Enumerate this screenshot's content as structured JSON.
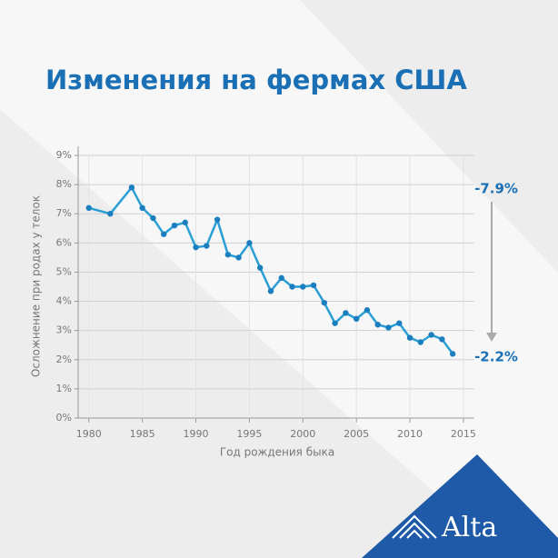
{
  "chart_data": {
    "type": "line",
    "title": "Изменения на фермах США",
    "ylabel": "Осложнение при родах у телок",
    "xlabel": "Год рождения быка",
    "x": [
      1980,
      1982,
      1984,
      1985,
      1986,
      1987,
      1988,
      1989,
      1990,
      1991,
      1992,
      1993,
      1994,
      1995,
      1996,
      1997,
      1998,
      1999,
      2000,
      2001,
      2002,
      2003,
      2004,
      2005,
      2006,
      2007,
      2008,
      2009,
      2010,
      2011,
      2012,
      2013,
      2014
    ],
    "values": [
      7.2,
      7.0,
      7.9,
      7.2,
      6.85,
      6.3,
      6.6,
      6.7,
      5.85,
      5.9,
      6.8,
      5.6,
      5.5,
      6.0,
      5.15,
      4.35,
      4.8,
      4.5,
      4.5,
      4.55,
      3.95,
      3.25,
      3.6,
      3.4,
      3.7,
      3.2,
      3.1,
      3.25,
      2.75,
      2.6,
      2.85,
      2.7,
      2.2
    ],
    "color": "#2a9fd6",
    "xlim": [
      1979,
      2016
    ],
    "xticks": [
      1980,
      1985,
      1990,
      1995,
      2000,
      2005,
      2010,
      2015
    ],
    "ylim": [
      0,
      9
    ],
    "yticks": [
      {
        "value": 0,
        "label": "0%"
      },
      {
        "value": 1,
        "label": "1%"
      },
      {
        "value": 2,
        "label": "2%"
      },
      {
        "value": 3,
        "label": "3%"
      },
      {
        "value": 4,
        "label": "4%"
      },
      {
        "value": 5,
        "label": "5%"
      },
      {
        "value": 6,
        "label": "6%"
      },
      {
        "value": 7,
        "label": "7%"
      },
      {
        "value": 8,
        "label": "8%"
      },
      {
        "value": 9,
        "label": "9%"
      }
    ],
    "grid": true,
    "annotations": [
      "-7.9%",
      "-2.2%"
    ],
    "brand": "Alta"
  }
}
